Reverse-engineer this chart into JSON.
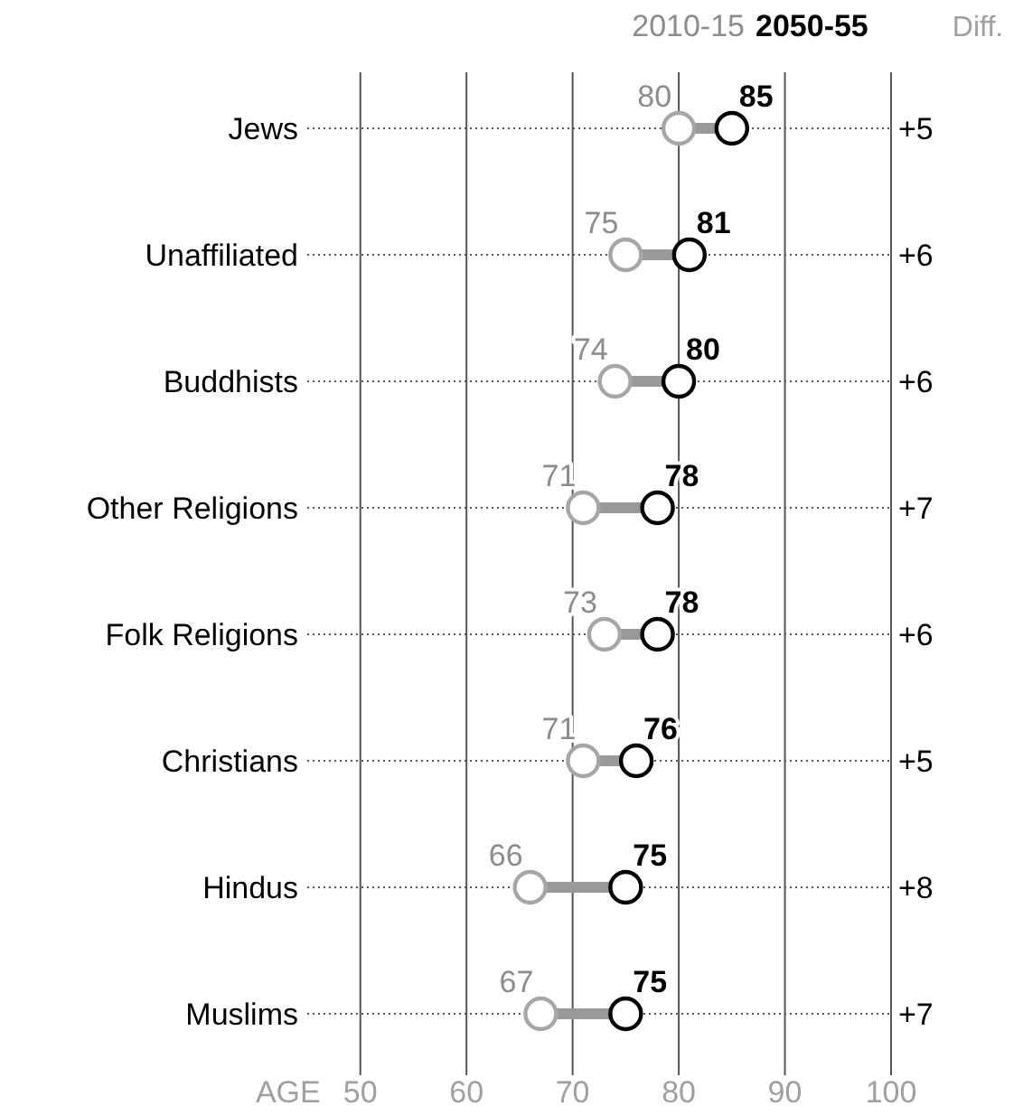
{
  "chart_data": {
    "type": "scatter",
    "orientation": "horizontal",
    "xlabel": "AGE",
    "categories": [
      "Jews",
      "Unaffiliated",
      "Buddhists",
      "Other Religions",
      "Folk Religions",
      "Christians",
      "Hindus",
      "Muslims"
    ],
    "series": [
      {
        "name": "2010-15",
        "color": "#a6a6a6",
        "values": [
          80,
          75,
          74,
          71,
          73,
          71,
          66,
          67
        ]
      },
      {
        "name": "2050-55",
        "color": "#000000",
        "values": [
          85,
          81,
          80,
          78,
          78,
          76,
          75,
          75
        ]
      }
    ],
    "xlim": [
      45,
      100
    ],
    "xticks": [
      50,
      60,
      70,
      80,
      90,
      100
    ],
    "grid": "x",
    "legend": "top right",
    "data_labels": true,
    "marker": "circle",
    "annotations": [
      "Diff.",
      "+5",
      "+6",
      "+6",
      "+7",
      "+6",
      "+5",
      "+8",
      "+7"
    ]
  }
}
